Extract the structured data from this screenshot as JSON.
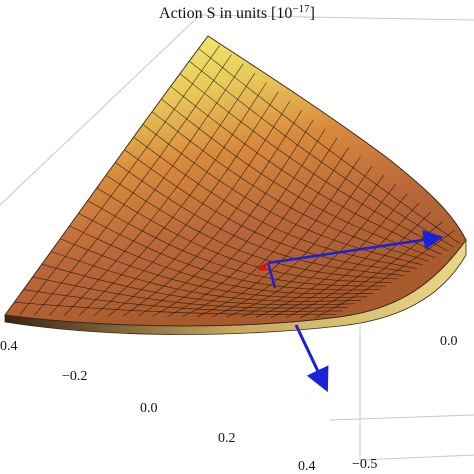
{
  "chart_data": {
    "type": "surface",
    "title_main": "Action S in units [10",
    "title_exp": "−17",
    "title_close": "]",
    "x_ticks": [
      "0.4",
      "−0.2",
      "0.0",
      "0.2",
      "0.4"
    ],
    "y_ticks": [
      "0.0",
      "−0.5"
    ],
    "colors": {
      "surface_high": "#f2f071",
      "surface_mid": "#d98a3c",
      "surface_low": "#a85a2c",
      "edge": "#3d2a1a",
      "vector": "#1a22d8",
      "origin_marker": "#e01010",
      "box": "#c8c8c8"
    }
  }
}
